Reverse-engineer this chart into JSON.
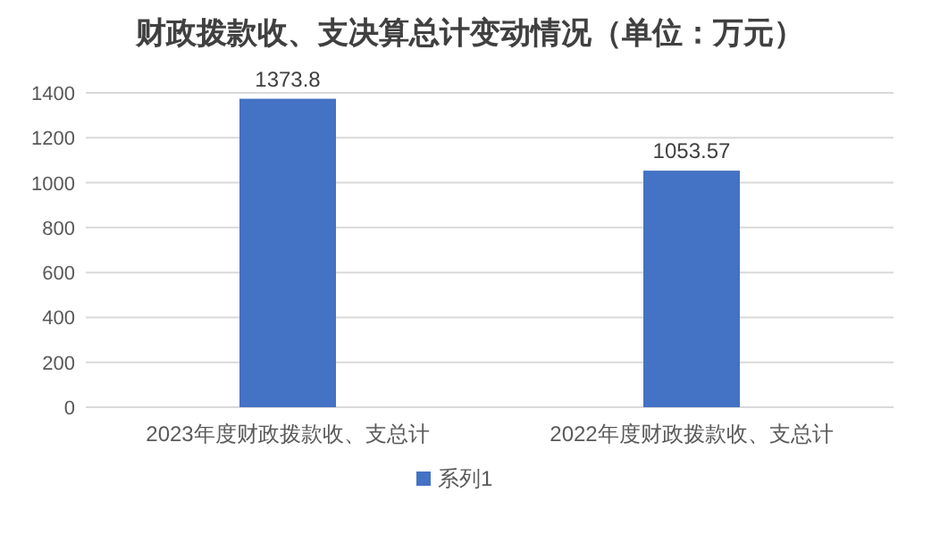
{
  "chart_data": {
    "type": "bar",
    "title": "财政拨款收、支决算总计变动情况（单位：万元）",
    "categories": [
      "2023年度财政拨款收、支总计",
      "2022年度财政拨款收、支总计"
    ],
    "series": [
      {
        "name": "系列1",
        "color": "#4472c4",
        "values": [
          1373.8,
          1053.57
        ]
      }
    ],
    "ylim": [
      0,
      1400
    ],
    "yticks": [
      0,
      200,
      400,
      600,
      800,
      1000,
      1200,
      1400
    ],
    "grid": "y",
    "legend": "bottom",
    "data_labels": true
  }
}
